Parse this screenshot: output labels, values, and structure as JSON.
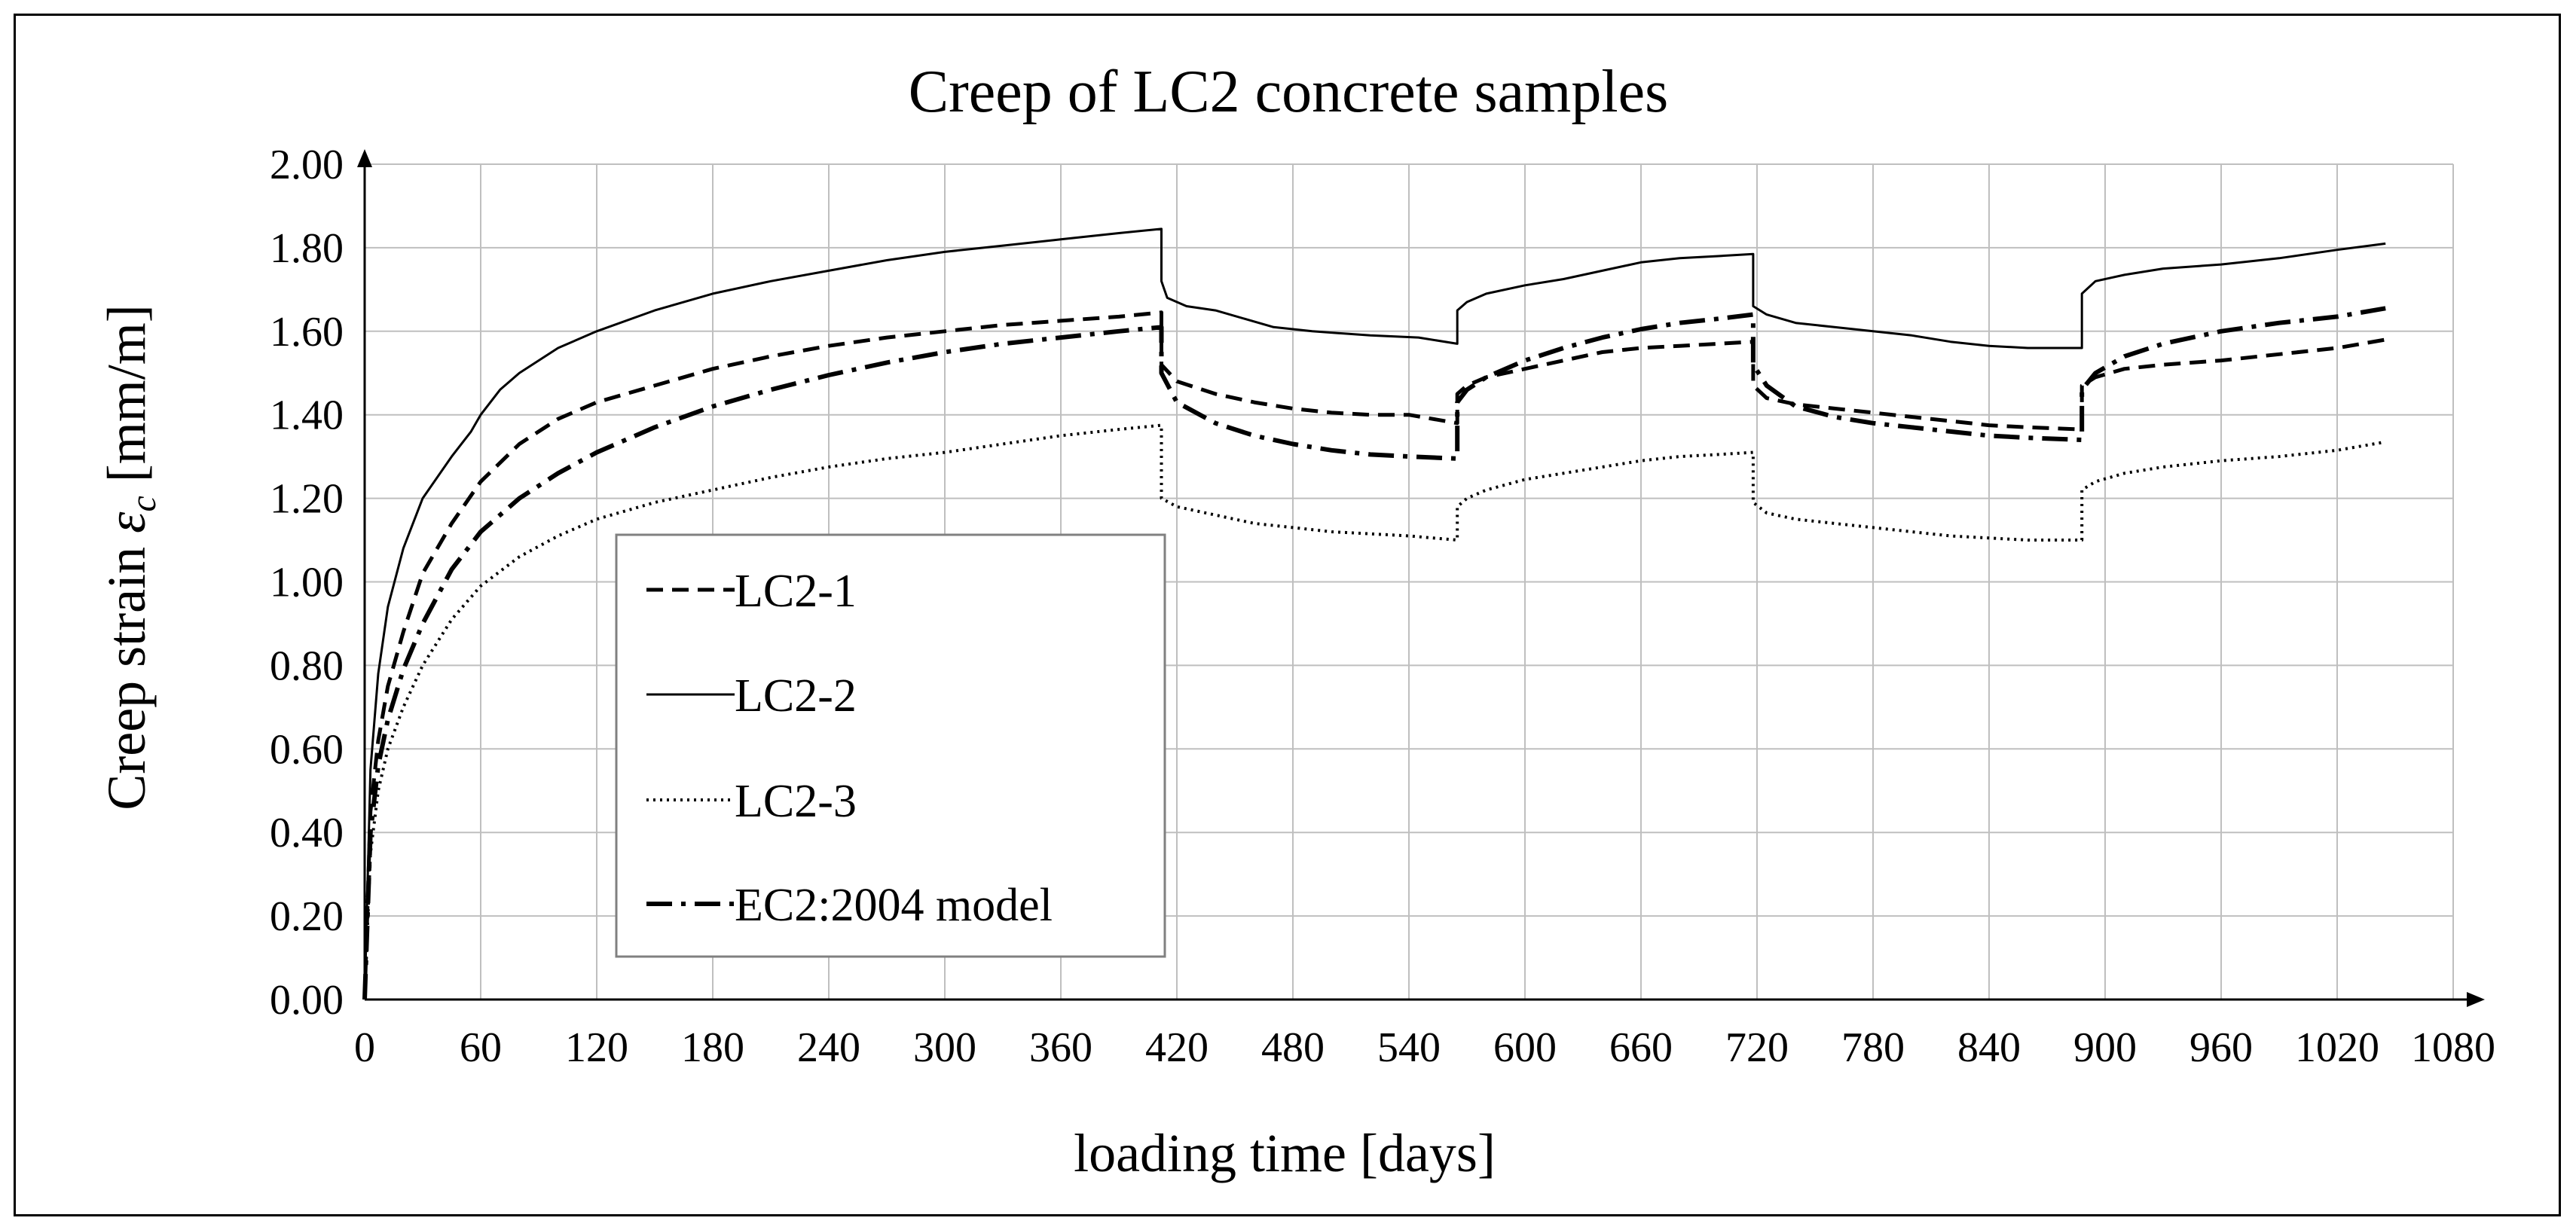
{
  "chart_data": {
    "type": "line",
    "title": "Creep of LC2 concrete samples",
    "xlabel": "loading time [days]",
    "ylabel_prefix": "Creep strain ",
    "ylabel_symbol": "ε",
    "ylabel_subscript": "c",
    "ylabel_suffix": " [mm/m]",
    "xlim": [
      0,
      1080
    ],
    "ylim": [
      0,
      2.0
    ],
    "xticks": [
      0,
      60,
      120,
      180,
      240,
      300,
      360,
      420,
      480,
      540,
      600,
      660,
      720,
      780,
      840,
      900,
      960,
      1020,
      1080
    ],
    "xtick_labels": [
      "0",
      "60",
      "120",
      "180",
      "240",
      "300",
      "360",
      "420",
      "480",
      "540",
      "600",
      "660",
      "720",
      "780",
      "840",
      "900",
      "960",
      "1020",
      "1080"
    ],
    "yticks": [
      0,
      0.2,
      0.4,
      0.6,
      0.8,
      1.0,
      1.2,
      1.4,
      1.6,
      1.8,
      2.0
    ],
    "ytick_labels": [
      "0.00",
      "0.20",
      "0.40",
      "0.60",
      "0.80",
      "1.00",
      "1.20",
      "1.40",
      "1.60",
      "1.80",
      "2.00"
    ],
    "grid": true,
    "legend_position": "center-left",
    "series": [
      {
        "name": "LC2-1",
        "line_style": "dashed",
        "x": [
          0,
          3,
          7,
          12,
          20,
          30,
          45,
          60,
          80,
          100,
          120,
          150,
          180,
          210,
          240,
          270,
          300,
          330,
          360,
          390,
          412,
          412,
          420,
          440,
          460,
          480,
          500,
          520,
          540,
          565,
          565,
          570,
          580,
          600,
          620,
          640,
          660,
          680,
          700,
          718,
          718,
          725,
          740,
          760,
          780,
          800,
          820,
          840,
          860,
          888,
          888,
          895,
          910,
          930,
          960,
          990,
          1020,
          1045
        ],
        "y": [
          0,
          0.45,
          0.62,
          0.75,
          0.88,
          1.02,
          1.14,
          1.24,
          1.33,
          1.39,
          1.43,
          1.47,
          1.51,
          1.54,
          1.565,
          1.585,
          1.6,
          1.615,
          1.625,
          1.635,
          1.645,
          1.52,
          1.48,
          1.45,
          1.43,
          1.415,
          1.405,
          1.4,
          1.4,
          1.38,
          1.45,
          1.47,
          1.49,
          1.51,
          1.53,
          1.55,
          1.56,
          1.565,
          1.57,
          1.575,
          1.47,
          1.44,
          1.425,
          1.415,
          1.405,
          1.395,
          1.385,
          1.375,
          1.37,
          1.365,
          1.47,
          1.49,
          1.51,
          1.52,
          1.53,
          1.545,
          1.56,
          1.58
        ]
      },
      {
        "name": "LC2-2",
        "line_style": "solid",
        "x": [
          0,
          3,
          7,
          12,
          20,
          30,
          45,
          55,
          60,
          70,
          80,
          100,
          120,
          150,
          180,
          210,
          240,
          270,
          300,
          330,
          360,
          390,
          412,
          412,
          415,
          425,
          440,
          455,
          470,
          490,
          520,
          545,
          565,
          565,
          570,
          580,
          600,
          620,
          640,
          660,
          680,
          700,
          718,
          718,
          725,
          740,
          760,
          780,
          800,
          820,
          840,
          860,
          888,
          888,
          895,
          910,
          930,
          960,
          990,
          1020,
          1045
        ],
        "y": [
          0,
          0.55,
          0.78,
          0.94,
          1.08,
          1.2,
          1.3,
          1.36,
          1.4,
          1.46,
          1.5,
          1.56,
          1.6,
          1.65,
          1.69,
          1.72,
          1.745,
          1.77,
          1.79,
          1.805,
          1.82,
          1.835,
          1.845,
          1.72,
          1.68,
          1.66,
          1.65,
          1.63,
          1.61,
          1.6,
          1.59,
          1.585,
          1.57,
          1.65,
          1.67,
          1.69,
          1.71,
          1.725,
          1.745,
          1.765,
          1.775,
          1.78,
          1.785,
          1.66,
          1.64,
          1.62,
          1.61,
          1.6,
          1.59,
          1.575,
          1.565,
          1.56,
          1.56,
          1.69,
          1.72,
          1.735,
          1.75,
          1.76,
          1.775,
          1.795,
          1.81
        ]
      },
      {
        "name": "LC2-3",
        "line_style": "dotted",
        "x": [
          0,
          3,
          7,
          12,
          20,
          30,
          45,
          60,
          80,
          100,
          120,
          150,
          180,
          210,
          240,
          270,
          300,
          330,
          360,
          390,
          412,
          412,
          420,
          440,
          460,
          480,
          500,
          520,
          540,
          565,
          565,
          570,
          580,
          600,
          620,
          640,
          660,
          680,
          700,
          718,
          718,
          725,
          740,
          760,
          780,
          800,
          820,
          840,
          860,
          888,
          888,
          895,
          910,
          930,
          960,
          990,
          1020,
          1045
        ],
        "y": [
          0,
          0.35,
          0.5,
          0.6,
          0.7,
          0.8,
          0.91,
          0.99,
          1.06,
          1.11,
          1.15,
          1.19,
          1.22,
          1.25,
          1.275,
          1.295,
          1.31,
          1.33,
          1.35,
          1.365,
          1.375,
          1.2,
          1.18,
          1.16,
          1.14,
          1.13,
          1.12,
          1.115,
          1.11,
          1.1,
          1.18,
          1.2,
          1.22,
          1.245,
          1.26,
          1.275,
          1.29,
          1.3,
          1.305,
          1.31,
          1.19,
          1.165,
          1.15,
          1.14,
          1.13,
          1.12,
          1.11,
          1.105,
          1.1,
          1.1,
          1.22,
          1.24,
          1.26,
          1.275,
          1.29,
          1.3,
          1.315,
          1.335
        ]
      },
      {
        "name": "EC2:2004 model",
        "line_style": "dashdot",
        "x": [
          0,
          3,
          7,
          12,
          20,
          30,
          45,
          60,
          80,
          100,
          120,
          150,
          180,
          210,
          240,
          270,
          300,
          330,
          360,
          390,
          412,
          412,
          420,
          440,
          460,
          480,
          500,
          520,
          540,
          565,
          565,
          570,
          580,
          600,
          620,
          640,
          660,
          680,
          700,
          718,
          718,
          725,
          740,
          760,
          780,
          800,
          820,
          840,
          860,
          888,
          888,
          895,
          910,
          930,
          960,
          990,
          1020,
          1045
        ],
        "y": [
          0,
          0.4,
          0.56,
          0.67,
          0.79,
          0.9,
          1.03,
          1.12,
          1.2,
          1.26,
          1.31,
          1.37,
          1.42,
          1.46,
          1.495,
          1.525,
          1.55,
          1.57,
          1.585,
          1.6,
          1.61,
          1.5,
          1.43,
          1.38,
          1.35,
          1.33,
          1.315,
          1.305,
          1.3,
          1.295,
          1.43,
          1.46,
          1.49,
          1.53,
          1.56,
          1.585,
          1.605,
          1.62,
          1.63,
          1.64,
          1.52,
          1.47,
          1.42,
          1.395,
          1.38,
          1.37,
          1.36,
          1.35,
          1.345,
          1.34,
          1.46,
          1.5,
          1.54,
          1.57,
          1.6,
          1.62,
          1.635,
          1.655
        ]
      }
    ]
  },
  "colors": {
    "line": "#000000",
    "grid": "#bfbfbf",
    "background": "#ffffff"
  }
}
